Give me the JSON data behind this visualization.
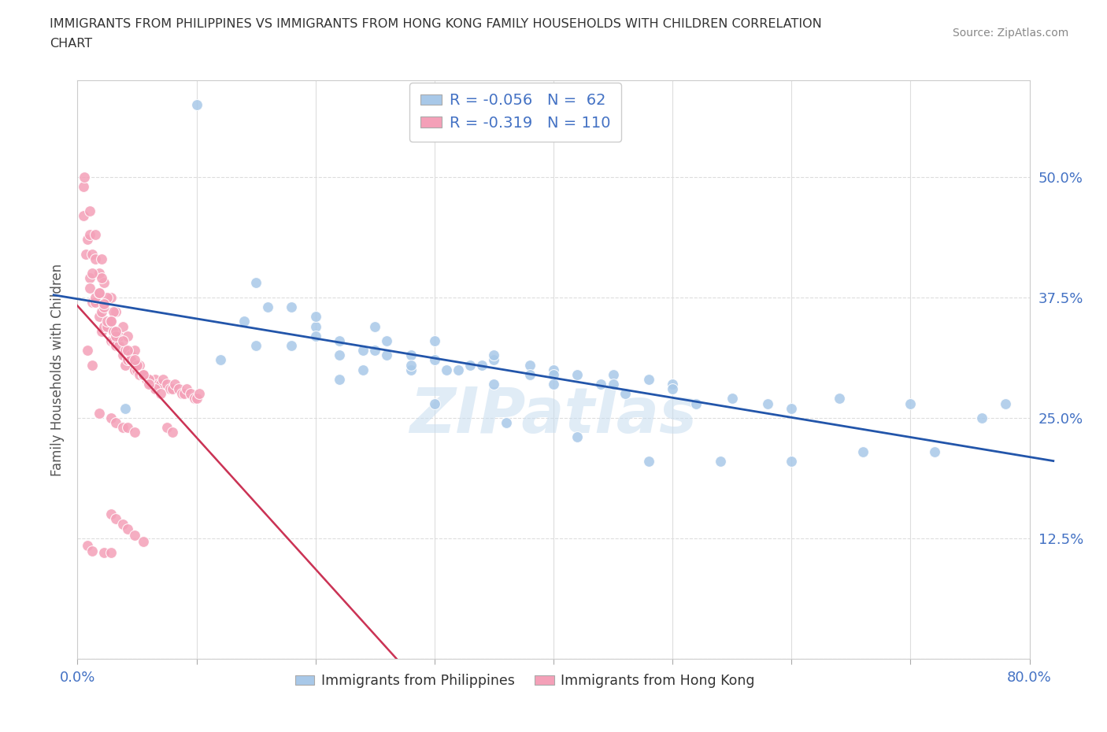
{
  "title_line1": "IMMIGRANTS FROM PHILIPPINES VS IMMIGRANTS FROM HONG KONG FAMILY HOUSEHOLDS WITH CHILDREN CORRELATION",
  "title_line2": "CHART",
  "source": "Source: ZipAtlas.com",
  "ylabel": "Family Households with Children",
  "xlim": [
    0.0,
    0.8
  ],
  "ylim": [
    0.0,
    0.6
  ],
  "philippines_R": -0.056,
  "philippines_N": 62,
  "hongkong_R": -0.319,
  "hongkong_N": 110,
  "philippines_color": "#a8c8e8",
  "hongkong_color": "#f4a0b8",
  "trendline_philippines_color": "#2255aa",
  "trendline_hongkong_solid_color": "#cc3355",
  "trendline_hongkong_dashed_color": "#cccccc",
  "background_color": "#ffffff",
  "philippines_x": [
    0.42,
    0.3,
    0.22,
    0.25,
    0.2,
    0.26,
    0.31,
    0.35,
    0.38,
    0.28,
    0.33,
    0.4,
    0.45,
    0.5,
    0.18,
    0.15,
    0.12,
    0.22,
    0.28,
    0.35,
    0.48,
    0.26,
    0.24,
    0.32,
    0.38,
    0.44,
    0.2,
    0.16,
    0.14,
    0.25,
    0.3,
    0.35,
    0.4,
    0.45,
    0.5,
    0.55,
    0.6,
    0.18,
    0.22,
    0.28,
    0.34,
    0.4,
    0.46,
    0.52,
    0.58,
    0.64,
    0.7,
    0.76,
    0.15,
    0.2,
    0.24,
    0.3,
    0.36,
    0.42,
    0.48,
    0.54,
    0.6,
    0.66,
    0.72,
    0.1,
    0.78,
    0.04
  ],
  "philippines_y": [
    0.295,
    0.31,
    0.33,
    0.32,
    0.345,
    0.315,
    0.3,
    0.31,
    0.305,
    0.315,
    0.305,
    0.3,
    0.295,
    0.285,
    0.325,
    0.325,
    0.31,
    0.29,
    0.3,
    0.285,
    0.29,
    0.33,
    0.32,
    0.3,
    0.295,
    0.285,
    0.355,
    0.365,
    0.35,
    0.345,
    0.33,
    0.315,
    0.295,
    0.285,
    0.28,
    0.27,
    0.26,
    0.365,
    0.315,
    0.305,
    0.305,
    0.285,
    0.275,
    0.265,
    0.265,
    0.27,
    0.265,
    0.25,
    0.39,
    0.335,
    0.3,
    0.265,
    0.245,
    0.23,
    0.205,
    0.205,
    0.205,
    0.215,
    0.215,
    0.575,
    0.265,
    0.26
  ],
  "hongkong_x": [
    0.005,
    0.007,
    0.01,
    0.012,
    0.015,
    0.018,
    0.02,
    0.022,
    0.025,
    0.028,
    0.03,
    0.032,
    0.035,
    0.038,
    0.04,
    0.042,
    0.045,
    0.048,
    0.05,
    0.052,
    0.055,
    0.058,
    0.06,
    0.062,
    0.065,
    0.068,
    0.07,
    0.072,
    0.075,
    0.078,
    0.08,
    0.082,
    0.085,
    0.088,
    0.09,
    0.092,
    0.095,
    0.098,
    0.1,
    0.102,
    0.01,
    0.015,
    0.02,
    0.025,
    0.03,
    0.035,
    0.04,
    0.045,
    0.05,
    0.055,
    0.008,
    0.012,
    0.018,
    0.022,
    0.028,
    0.032,
    0.038,
    0.042,
    0.048,
    0.052,
    0.005,
    0.01,
    0.015,
    0.02,
    0.025,
    0.03,
    0.018,
    0.022,
    0.028,
    0.032,
    0.006,
    0.01,
    0.015,
    0.02,
    0.045,
    0.05,
    0.055,
    0.06,
    0.065,
    0.07,
    0.012,
    0.018,
    0.022,
    0.028,
    0.032,
    0.038,
    0.042,
    0.048,
    0.055,
    0.06,
    0.008,
    0.012,
    0.018,
    0.028,
    0.032,
    0.038,
    0.042,
    0.048,
    0.075,
    0.08,
    0.022,
    0.028,
    0.028,
    0.032,
    0.038,
    0.042,
    0.048,
    0.055,
    0.008,
    0.012
  ],
  "hongkong_y": [
    0.46,
    0.42,
    0.395,
    0.37,
    0.37,
    0.355,
    0.34,
    0.345,
    0.345,
    0.33,
    0.33,
    0.325,
    0.325,
    0.315,
    0.305,
    0.31,
    0.31,
    0.3,
    0.3,
    0.295,
    0.295,
    0.29,
    0.29,
    0.285,
    0.29,
    0.285,
    0.285,
    0.29,
    0.285,
    0.28,
    0.28,
    0.285,
    0.28,
    0.275,
    0.275,
    0.28,
    0.275,
    0.27,
    0.27,
    0.275,
    0.385,
    0.375,
    0.36,
    0.35,
    0.34,
    0.335,
    0.32,
    0.315,
    0.305,
    0.295,
    0.435,
    0.42,
    0.4,
    0.39,
    0.375,
    0.36,
    0.345,
    0.335,
    0.32,
    0.305,
    0.49,
    0.44,
    0.415,
    0.395,
    0.375,
    0.36,
    0.38,
    0.365,
    0.35,
    0.335,
    0.5,
    0.465,
    0.44,
    0.415,
    0.31,
    0.305,
    0.295,
    0.29,
    0.28,
    0.275,
    0.4,
    0.38,
    0.368,
    0.35,
    0.34,
    0.33,
    0.32,
    0.31,
    0.295,
    0.285,
    0.32,
    0.305,
    0.255,
    0.25,
    0.245,
    0.24,
    0.24,
    0.235,
    0.24,
    0.235,
    0.11,
    0.11,
    0.15,
    0.145,
    0.14,
    0.135,
    0.128,
    0.122,
    0.118,
    0.112
  ]
}
